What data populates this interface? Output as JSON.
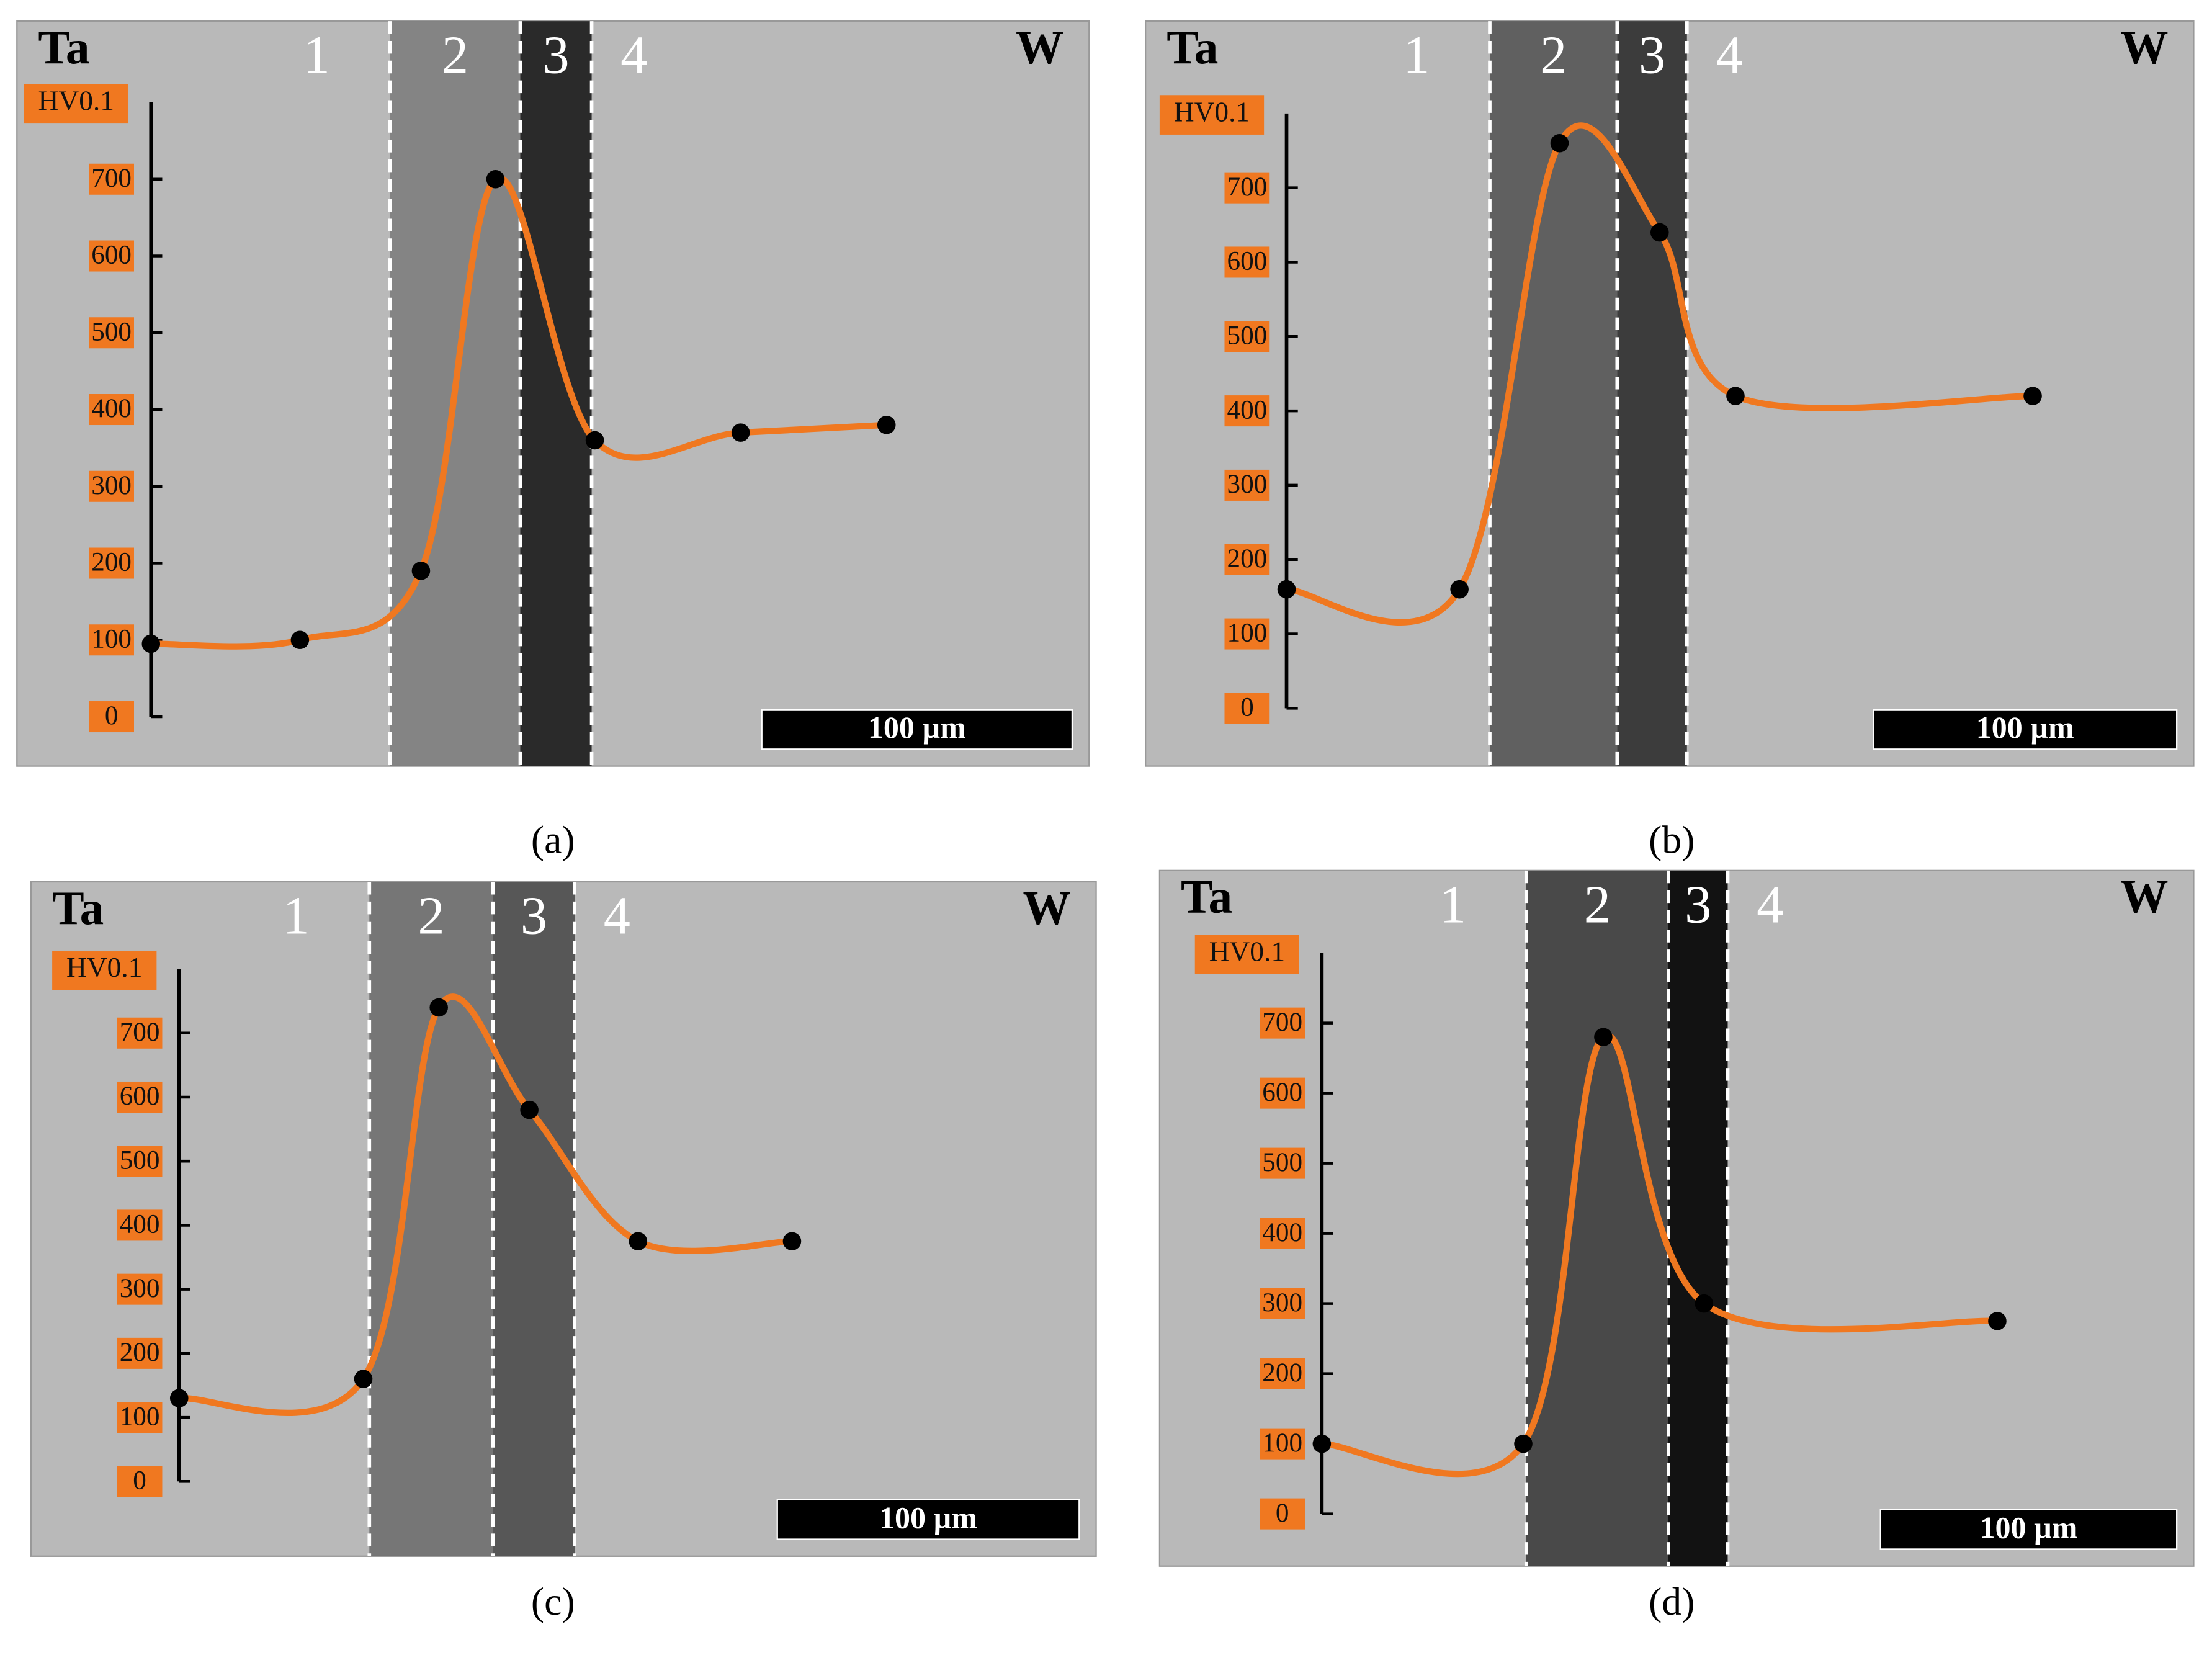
{
  "chart_data": [
    {
      "type": "line",
      "caption": "(a)",
      "left_label": "Ta",
      "right_label": "W",
      "zones": [
        "1",
        "2",
        "3",
        "4"
      ],
      "zone_bounds": [
        77,
        119,
        142
      ],
      "y_label": "HV0.1",
      "scale_bar": "100 µm",
      "color": "#f07820",
      "x": [
        0,
        48,
        87,
        111,
        143,
        190,
        237
      ],
      "values": [
        95,
        100,
        190,
        700,
        360,
        370,
        380
      ],
      "ylim": [
        0,
        800
      ],
      "yticks": [
        0,
        100,
        200,
        300,
        400,
        500,
        600,
        700
      ]
    },
    {
      "type": "line",
      "caption": "(b)",
      "left_label": "Ta",
      "right_label": "W",
      "zones": [
        "1",
        "2",
        "3",
        "4"
      ],
      "zone_bounds": [
        67,
        109,
        132
      ],
      "y_label": "HV0.1",
      "scale_bar": "100 µm",
      "color": "#f07820",
      "x": [
        0,
        57,
        90,
        123,
        148,
        246
      ],
      "values": [
        160,
        160,
        760,
        640,
        420,
        420
      ],
      "ylim": [
        0,
        800
      ],
      "yticks": [
        0,
        100,
        200,
        300,
        400,
        500,
        600,
        700
      ]
    },
    {
      "type": "line",
      "caption": "(c)",
      "left_label": "Ta",
      "right_label": "W",
      "zones": [
        "1",
        "2",
        "3",
        "4"
      ],
      "zone_bounds": [
        63,
        104,
        131
      ],
      "y_label": "HV0.1",
      "scale_bar": "100 µm",
      "color": "#f07820",
      "x": [
        0,
        61,
        86,
        116,
        152,
        203
      ],
      "values": [
        130,
        160,
        740,
        580,
        375,
        375
      ],
      "ylim": [
        0,
        800
      ],
      "yticks": [
        0,
        100,
        200,
        300,
        400,
        500,
        600,
        700
      ]
    },
    {
      "type": "line",
      "caption": "(d)",
      "left_label": "Ta",
      "right_label": "W",
      "zones": [
        "1",
        "2",
        "3",
        "4"
      ],
      "zone_bounds": [
        69,
        117,
        137
      ],
      "y_label": "HV0.1",
      "scale_bar": "100 µm",
      "color": "#f07820",
      "x": [
        0,
        68,
        95,
        129,
        228
      ],
      "values": [
        100,
        100,
        680,
        300,
        275
      ],
      "ylim": [
        0,
        800
      ],
      "yticks": [
        0,
        100,
        200,
        300,
        400,
        500,
        600,
        700
      ]
    }
  ]
}
